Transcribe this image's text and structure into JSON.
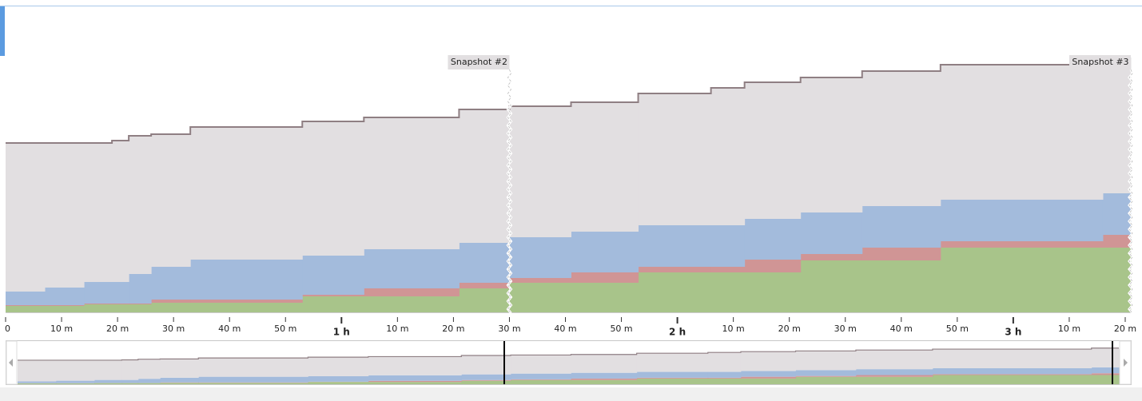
{
  "chart_data": {
    "type": "stacked-step-area",
    "x": [
      0,
      7,
      14,
      19,
      22,
      26,
      33,
      53,
      64,
      81,
      90,
      101,
      113,
      126,
      132,
      142,
      153,
      167,
      196
    ],
    "series": [
      {
        "color": "#a8c48a",
        "values": [
          8,
          8,
          10,
          10,
          10,
          12,
          12,
          20,
          20,
          30,
          37,
          37,
          50,
          50,
          50,
          65,
          65,
          81,
          81
        ]
      },
      {
        "color": "#d09595",
        "values": [
          1,
          1,
          1,
          1,
          1,
          4,
          4,
          2,
          10,
          7,
          6,
          13,
          7,
          7,
          16,
          8,
          16,
          8,
          16
        ]
      },
      {
        "color": "#a3bbdc",
        "values": [
          17,
          22,
          27,
          27,
          37,
          41,
          50,
          49,
          49,
          50,
          51,
          51,
          52,
          52,
          51,
          52,
          52,
          52,
          52
        ]
      },
      {
        "color": "#e2dfe1",
        "values": [
          186,
          181,
          174,
          177,
          173,
          166,
          166,
          168,
          165,
          167,
          164,
          162,
          165,
          172,
          171,
          169,
          169,
          169,
          170
        ]
      }
    ],
    "xlim": [
      0,
      201
    ],
    "ylim": [
      0,
      381
    ],
    "xticks": [
      0,
      {
        "value": 10,
        "label": "10 m"
      },
      {
        "value": 20,
        "label": "20 m"
      },
      {
        "value": 30,
        "label": "30 m"
      },
      {
        "value": 40,
        "label": "40 m"
      },
      {
        "value": 50,
        "label": "50 m"
      },
      {
        "value": 60,
        "label": "1 h"
      },
      {
        "value": 70,
        "label": "10 m"
      },
      {
        "value": 80,
        "label": "20 m"
      },
      {
        "value": 90,
        "label": "30 m"
      },
      {
        "value": 100,
        "label": "40 m"
      },
      {
        "value": 110,
        "label": "50 m"
      },
      {
        "value": 120,
        "label": "2 h"
      },
      {
        "value": 130,
        "label": "10 m"
      },
      {
        "value": 140,
        "label": "20 m"
      },
      {
        "value": 150,
        "label": "30 m"
      },
      {
        "value": 160,
        "label": "40 m"
      },
      {
        "value": 170,
        "label": "50 m"
      },
      {
        "value": 180,
        "label": "3 h"
      },
      {
        "value": 190,
        "label": "10 m"
      },
      {
        "value": 200,
        "label": "20 m"
      }
    ],
    "annotations": [
      {
        "x": 90,
        "label": "Snapshot #2"
      },
      {
        "x": 201,
        "label": "Snapshot #3"
      }
    ]
  }
}
